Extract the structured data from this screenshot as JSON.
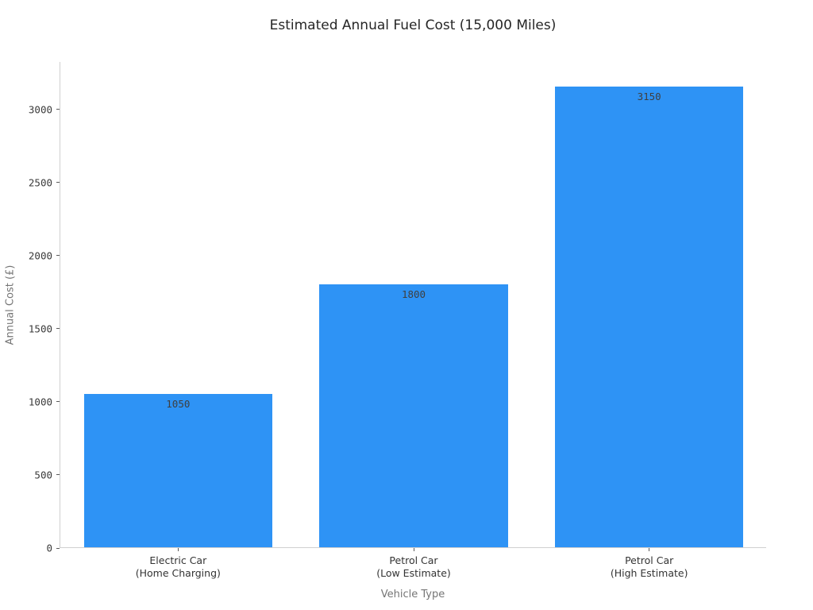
{
  "figure": {
    "background": "#ffffff"
  },
  "chart_data": {
    "type": "bar",
    "title": "Estimated Annual Fuel Cost (15,000 Miles)",
    "xlabel": "Vehicle Type",
    "ylabel": "Annual Cost (£)",
    "categories": [
      "Electric Car\n(Home Charging)",
      "Petrol Car\n(Low Estimate)",
      "Petrol Car\n(High Estimate)"
    ],
    "values": [
      1050,
      1800,
      3150
    ],
    "bar_labels": [
      "1050",
      "1800",
      "3150"
    ],
    "ylim": [
      0,
      3325
    ],
    "yticks": [
      0,
      500,
      1000,
      1500,
      2000,
      2500,
      3000
    ],
    "grid": false,
    "legend": "none",
    "bar_width_fraction": 0.8
  },
  "style": {
    "bar_color": "#2E93F5",
    "title_color": "#262626",
    "tick_label_color": "#3a3a3a",
    "xtick_label_color": "#333333",
    "value_label_color": "#3f3f3f",
    "axis_title_color": "#757575",
    "spine_color": "#cfcfcf",
    "tick_mark_color": "#5a5a5a"
  }
}
